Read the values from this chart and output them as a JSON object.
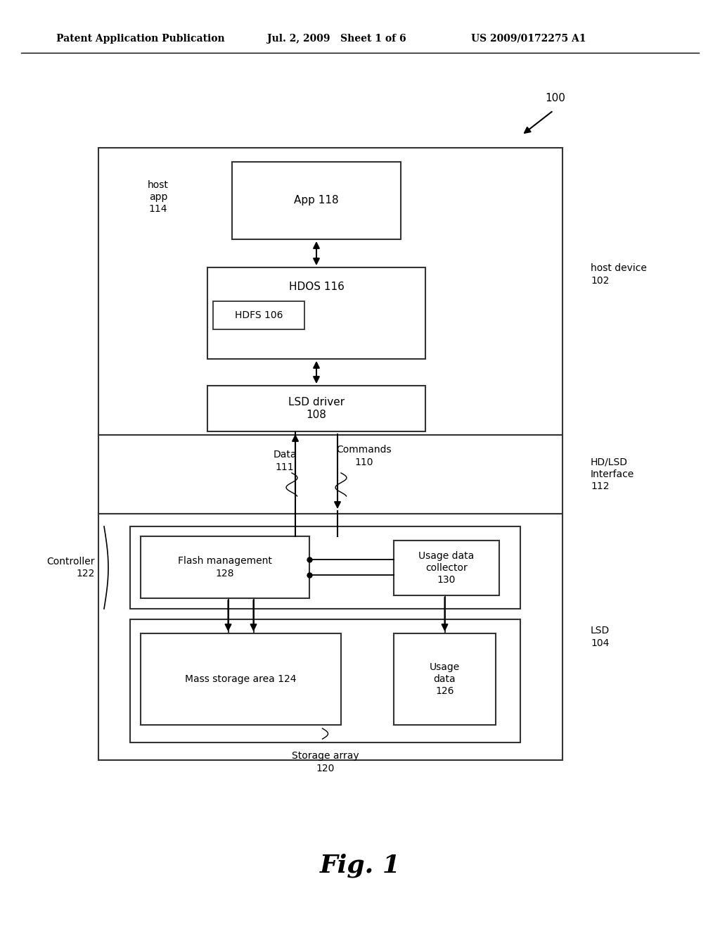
{
  "bg_color": "#ffffff",
  "header_left": "Patent Application Publication",
  "header_mid": "Jul. 2, 2009   Sheet 1 of 6",
  "header_right": "US 2009/0172275 A1",
  "fig_label": "Fig. 1",
  "label_100": "100",
  "label_host_device": "host device\n102",
  "label_host_app": "host\napp\n114",
  "label_app118": "App 118",
  "label_hdos116": "HDOS 116",
  "label_hdfs106": "HDFS 106",
  "label_lsd_driver": "LSD driver\n108",
  "label_hd_lsd": "HD/LSD\nInterface\n112",
  "label_data": "Data\n111",
  "label_commands": "Commands\n110",
  "label_controller": "Controller\n122",
  "label_flash": "Flash management\n128",
  "label_usage_collector": "Usage data\ncollector\n130",
  "label_mass_storage": "Mass storage area 124",
  "label_usage_data": "Usage\ndata\n126",
  "label_storage_array": "Storage array\n120",
  "label_lsd": "LSD\n104"
}
